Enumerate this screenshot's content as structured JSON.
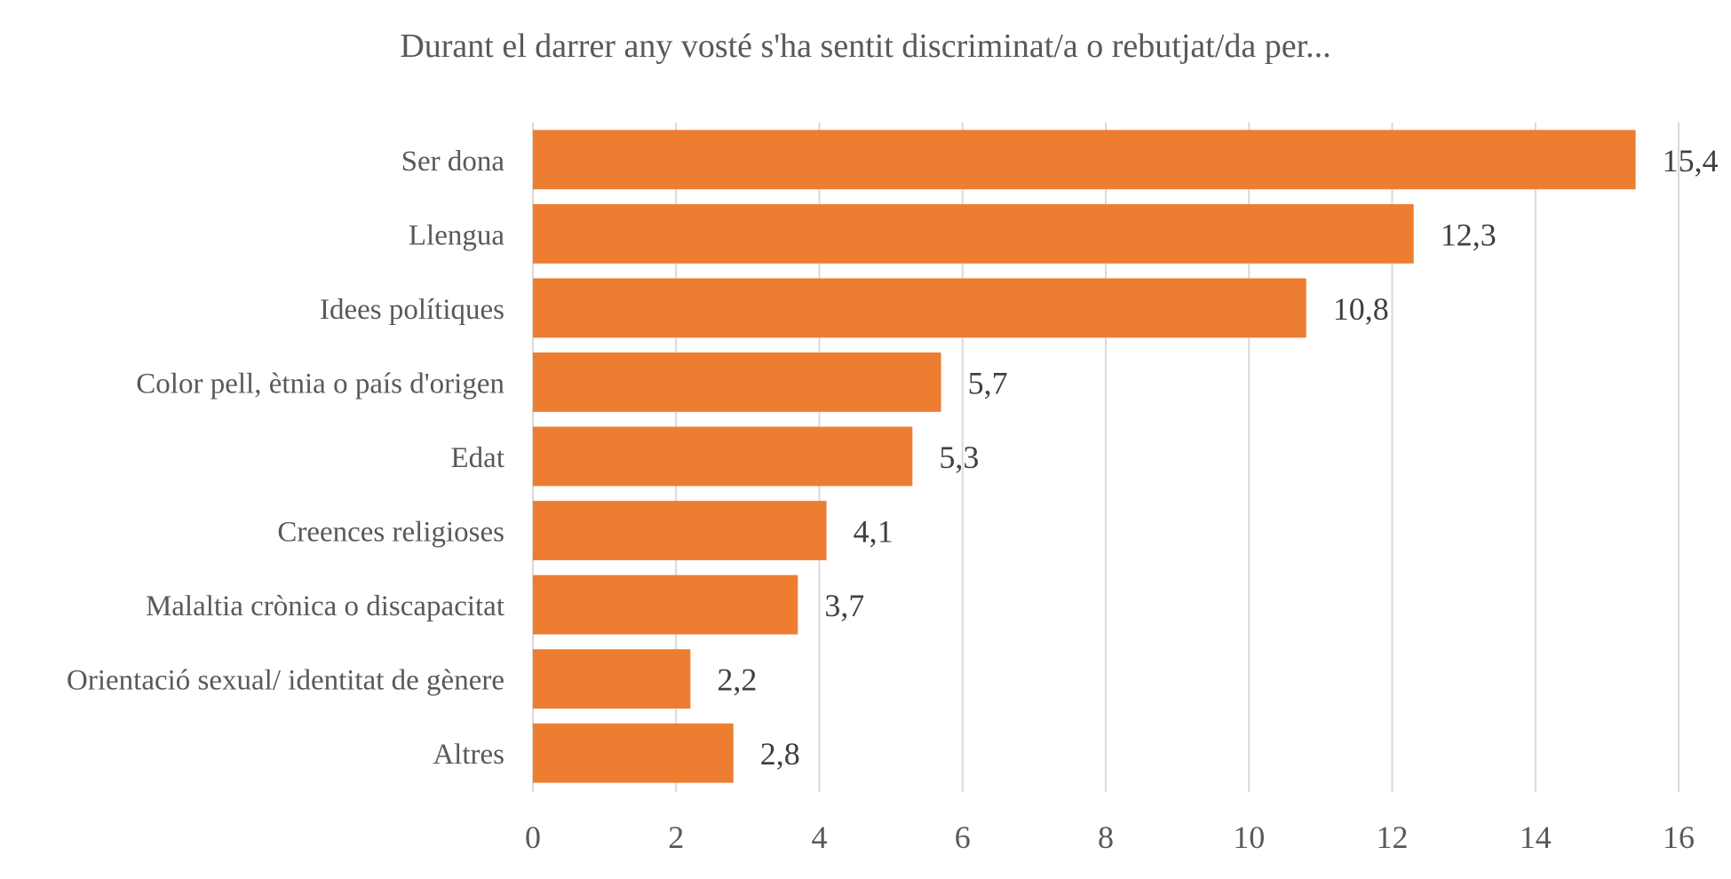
{
  "chart_data": {
    "type": "bar",
    "orientation": "horizontal",
    "title": "Durant el darrer any vosté s'ha sentit discriminat/a o rebutjat/da per...",
    "categories": [
      "Ser dona",
      "Llengua",
      "Idees polítiques",
      "Color pell, ètnia o país d'origen",
      "Edat",
      "Creences religioses",
      "Malaltia crònica o discapacitat",
      "Orientació sexual/ identitat de gènere",
      "Altres"
    ],
    "values": [
      15.4,
      12.3,
      10.8,
      5.7,
      5.3,
      4.1,
      3.7,
      2.2,
      2.8
    ],
    "value_labels": [
      "15,4",
      "12,3",
      "10,8",
      "5,7",
      "5,3",
      "4,1",
      "3,7",
      "2,2",
      "2,8"
    ],
    "xlim": [
      0,
      16
    ],
    "x_ticks": [
      0,
      2,
      4,
      6,
      8,
      10,
      12,
      14,
      16
    ],
    "grid": "vertical",
    "legend": "none",
    "bar_color": "#ED7D31",
    "grid_color": "#D9D9D9"
  }
}
